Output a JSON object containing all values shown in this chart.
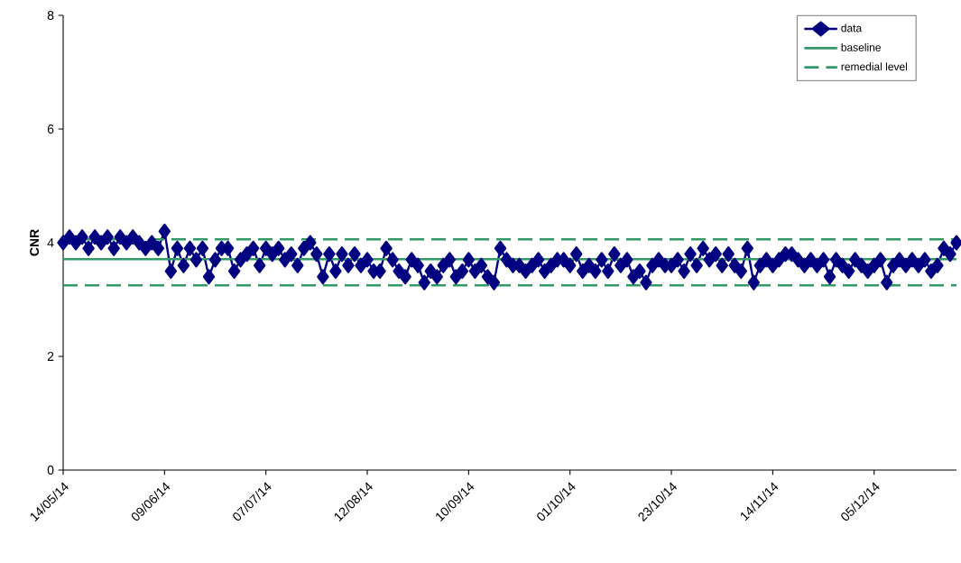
{
  "chart_data": {
    "type": "line",
    "ylabel": "CNR",
    "categories": [
      "14/05/14",
      null,
      null,
      null,
      null,
      null,
      null,
      null,
      null,
      null,
      null,
      null,
      null,
      null,
      null,
      null,
      "09/06/14",
      null,
      null,
      null,
      null,
      null,
      null,
      null,
      null,
      null,
      null,
      null,
      null,
      null,
      null,
      null,
      "07/07/14",
      null,
      null,
      null,
      null,
      null,
      null,
      null,
      null,
      null,
      null,
      null,
      null,
      null,
      null,
      null,
      "12/08/14",
      null,
      null,
      null,
      null,
      null,
      null,
      null,
      null,
      null,
      null,
      null,
      null,
      null,
      null,
      null,
      "10/09/14",
      null,
      null,
      null,
      null,
      null,
      null,
      null,
      null,
      null,
      null,
      null,
      null,
      null,
      null,
      null,
      "01/10/14",
      null,
      null,
      null,
      null,
      null,
      null,
      null,
      null,
      null,
      null,
      null,
      null,
      null,
      null,
      null,
      "23/10/14",
      null,
      null,
      null,
      null,
      null,
      null,
      null,
      null,
      null,
      null,
      null,
      null,
      null,
      null,
      null,
      "14/11/14",
      null,
      null,
      null,
      null,
      null,
      null,
      null,
      null,
      null,
      null,
      null,
      null,
      null,
      null,
      null,
      "05/12/14",
      null,
      null,
      null,
      null,
      null,
      null,
      null,
      null,
      null,
      null,
      null,
      null,
      null
    ],
    "series": [
      {
        "name": "data",
        "color": "#000080",
        "values": [
          4.0,
          4.1,
          4.0,
          4.1,
          3.9,
          4.1,
          4.0,
          4.1,
          3.9,
          4.1,
          4.0,
          4.1,
          4.0,
          3.9,
          4.0,
          3.9,
          4.2,
          3.5,
          3.9,
          3.6,
          3.9,
          3.7,
          3.9,
          3.4,
          3.7,
          3.9,
          3.9,
          3.5,
          3.7,
          3.8,
          3.9,
          3.6,
          3.9,
          3.8,
          3.9,
          3.7,
          3.8,
          3.6,
          3.9,
          4.0,
          3.8,
          3.4,
          3.8,
          3.5,
          3.8,
          3.6,
          3.8,
          3.6,
          3.7,
          3.5,
          3.5,
          3.9,
          3.7,
          3.5,
          3.4,
          3.7,
          3.6,
          3.3,
          3.5,
          3.4,
          3.6,
          3.7,
          3.4,
          3.5,
          3.7,
          3.5,
          3.6,
          3.4,
          3.3,
          3.9,
          3.7,
          3.6,
          3.6,
          3.5,
          3.6,
          3.7,
          3.5,
          3.6,
          3.7,
          3.7,
          3.6,
          3.8,
          3.5,
          3.6,
          3.5,
          3.7,
          3.5,
          3.8,
          3.6,
          3.7,
          3.4,
          3.5,
          3.3,
          3.6,
          3.7,
          3.6,
          3.6,
          3.7,
          3.5,
          3.8,
          3.6,
          3.9,
          3.7,
          3.8,
          3.6,
          3.8,
          3.6,
          3.5,
          3.9,
          3.3,
          3.6,
          3.7,
          3.6,
          3.7,
          3.8,
          3.8,
          3.7,
          3.6,
          3.7,
          3.6,
          3.7,
          3.4,
          3.7,
          3.6,
          3.5,
          3.7,
          3.6,
          3.5,
          3.6,
          3.7,
          3.3,
          3.6,
          3.7,
          3.6,
          3.7,
          3.6,
          3.7,
          3.5,
          3.6,
          3.9,
          3.8,
          4.0
        ]
      }
    ],
    "ref_lines": [
      {
        "axis": "y",
        "value": 3.71,
        "label": "baseline",
        "color": "#339966",
        "line_style": "solid"
      },
      {
        "axis": "y",
        "value": 4.06,
        "label": "remedial level",
        "color": "#339966",
        "line_style": "dashed"
      },
      {
        "axis": "y",
        "value": 3.25,
        "color": "#339966",
        "line_style": "dashed"
      }
    ],
    "ylim": [
      0,
      8
    ],
    "yticks": [
      0,
      2,
      4,
      6,
      8
    ],
    "marker": "diamond",
    "line_style": "solid",
    "grid": false,
    "legend": "top right"
  }
}
